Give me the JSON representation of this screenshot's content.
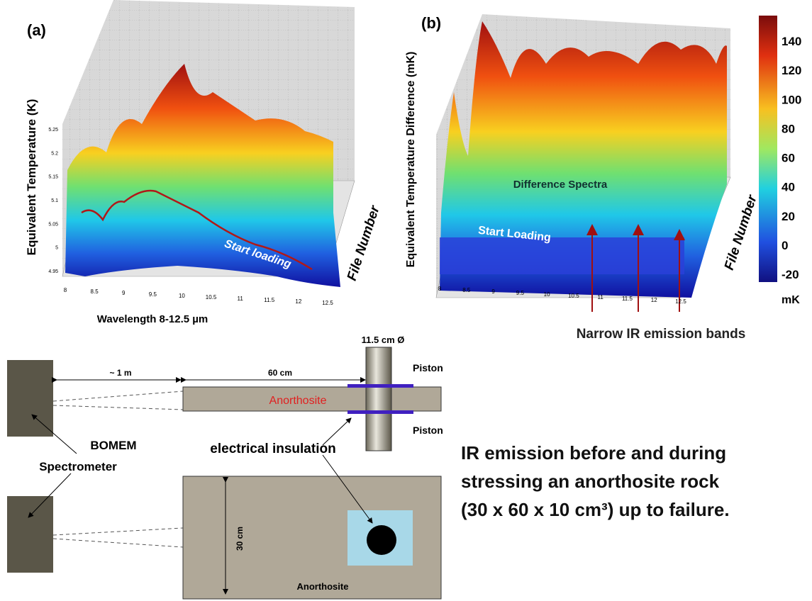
{
  "panel_a": {
    "label": "(a)",
    "y_axis_label": "Equivalent Temperature (K)",
    "x_axis_label": "Wavelength 8-12.5 µm",
    "depth_axis_label": "File Number",
    "annotation": "Start loading",
    "x_ticks": [
      "8",
      "8.5",
      "9",
      "9.5",
      "10",
      "10.5",
      "11",
      "11.5",
      "12",
      "12.5"
    ],
    "y_ticks": [
      "4.95",
      "5",
      "5.05",
      "5.1",
      "5.15",
      "5.2",
      "5.25"
    ]
  },
  "panel_b": {
    "label": "(b)",
    "y_axis_label": "Equivalent Temperature Difference (mK)",
    "depth_axis_label": "File Number",
    "annotation_top": "Difference Spectra",
    "annotation_bottom": "Start Loading",
    "arrow_caption": "Narrow IR emission bands",
    "x_ticks": [
      "8",
      "8.5",
      "9",
      "9.5",
      "10",
      "10.5",
      "11",
      "11.5",
      "12",
      "12.5"
    ],
    "colorbar_ticks": [
      "140",
      "120",
      "100",
      "80",
      "60",
      "40",
      "20",
      "0",
      "-20"
    ],
    "colorbar_unit": "mK"
  },
  "diagram": {
    "piston_diameter": "11.5 cm Ø",
    "piston_top": "Piston",
    "piston_bottom": "Piston",
    "distance": "~ 1 m",
    "rock_length": "60 cm",
    "rock_label_side": "Anorthosite",
    "spectrometer_line1": "BOMEM",
    "spectrometer_line2": "Spectrometer",
    "insulation": "electrical insulation",
    "rock_width": "30 cm",
    "rock_label_top": "Anorthosite"
  },
  "caption": [
    "IR emission before and during",
    "stressing an anorthosite rock",
    "(30 x 60 x 10 cm³) up to failure."
  ]
}
